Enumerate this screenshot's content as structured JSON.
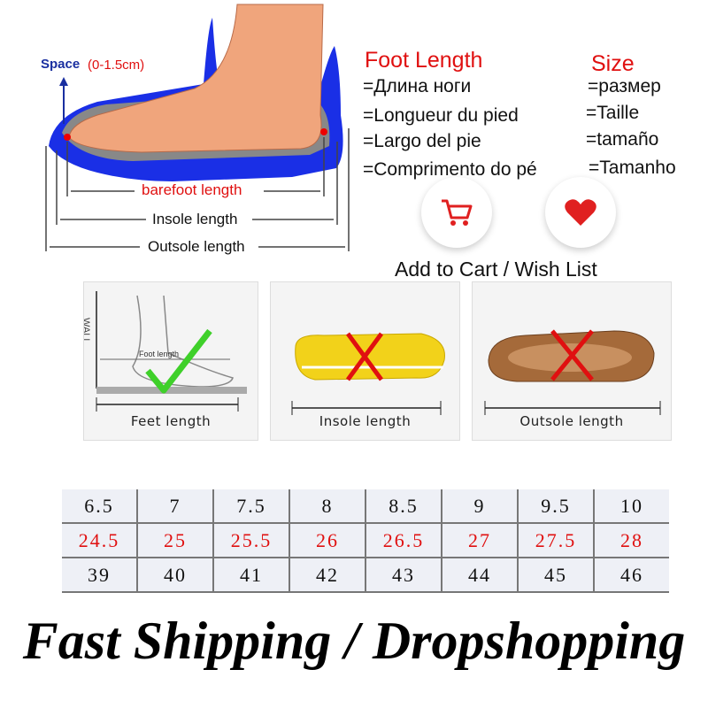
{
  "diagram": {
    "space_label": "Space",
    "space_range": "(0-1.5cm)",
    "barefoot_label": "barefoot length",
    "insole_label": "Insole length",
    "outsole_label": "Outsole length"
  },
  "foot_length": {
    "title": "Foot Length",
    "translations": [
      "=Длина ноги",
      "=Longueur du pied",
      "=Largo del pie",
      "=Comprimento do pé"
    ]
  },
  "size": {
    "title": "Size",
    "translations": [
      "=размер",
      "=Taille",
      "=tamaño",
      "=Tamanho"
    ]
  },
  "actions": {
    "cart_icon": "shopping-cart-icon",
    "wish_icon": "heart-icon",
    "label": "Add to Cart / Wish List",
    "accent": "#e02020"
  },
  "panels": [
    {
      "label": "Feet length",
      "wall": "WALL",
      "inner": "Foot length",
      "mark": "check"
    },
    {
      "label": "Insole length",
      "mark": "cross"
    },
    {
      "label": "Outsole length",
      "mark": "cross"
    }
  ],
  "size_table": {
    "rows": [
      {
        "color": "#111111",
        "cells": [
          "6.5",
          "7",
          "7.5",
          "8",
          "8.5",
          "9",
          "9.5",
          "10"
        ]
      },
      {
        "color": "#e01010",
        "cells": [
          "24.5",
          "25",
          "25.5",
          "26",
          "26.5",
          "27",
          "27.5",
          "28"
        ]
      },
      {
        "color": "#111111",
        "cells": [
          "39",
          "40",
          "41",
          "42",
          "43",
          "44",
          "45",
          "46"
        ]
      }
    ]
  },
  "footer": {
    "text": "Fast Shipping / Dropshopping"
  }
}
